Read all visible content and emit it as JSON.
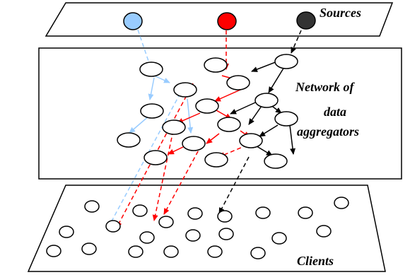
{
  "labels": {
    "sources": "Sources",
    "network_line1": "Network of",
    "network_line2": "data",
    "network_line3": "aggregators",
    "clients": "Clients"
  },
  "colors": {
    "source_blue": "#99ccff",
    "source_red": "#ff0000",
    "source_black": "#333333",
    "arrow_blue": "#99ccff",
    "arrow_red": "#ff0000",
    "arrow_black": "#000000"
  }
}
